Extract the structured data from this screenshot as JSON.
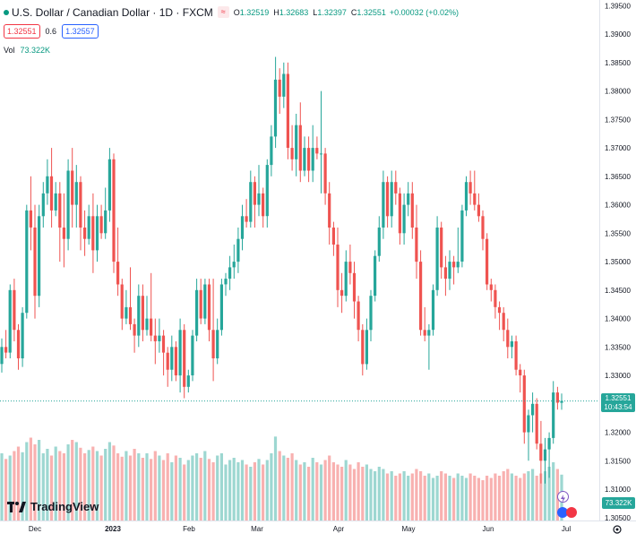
{
  "header": {
    "symbol_title": "U.S. Dollar / Canadian Dollar · 1D · FXCM",
    "open_label": "O",
    "open": "1.32519",
    "high_label": "H",
    "high": "1.32683",
    "low_label": "L",
    "low": "1.32397",
    "close_label": "C",
    "close": "1.32551",
    "change": "+0.00032 (+0.02%)",
    "bid": "1.32551",
    "spread": "0.6",
    "ask": "1.32557",
    "vol_label": "Vol",
    "vol_value": "73.322K"
  },
  "price_scale": [
    "1.39500",
    "1.39000",
    "1.38500",
    "1.38000",
    "1.37500",
    "1.37000",
    "1.36500",
    "1.36000",
    "1.35500",
    "1.35000",
    "1.34500",
    "1.34000",
    "1.33500",
    "1.33000",
    "1.32500",
    "1.32000",
    "1.31500",
    "1.31000",
    "1.30500"
  ],
  "last_price_tag": {
    "price": "1.32551",
    "countdown": "10:43:54"
  },
  "volume_tag": "73.322K",
  "time_axis": [
    "Dec",
    "2023",
    "Feb",
    "Mar",
    "Apr",
    "May",
    "Jun",
    "Jul"
  ],
  "branding": {
    "name": "TradingView"
  },
  "colors": {
    "up": "#26a69a",
    "down": "#ef5350",
    "vol_up": "#26a69a",
    "vol_down": "#ef5350"
  },
  "icons": [
    "settings-gear-icon",
    "lightning-icon",
    "flag-icon"
  ],
  "chart_data": {
    "type": "candlestick",
    "symbol": "USDCAD",
    "interval": "1D",
    "ylim": [
      1.3045,
      1.396
    ],
    "last_price": 1.32551,
    "candles": [
      [
        1.332,
        1.3365,
        1.3305,
        1.335
      ],
      [
        1.335,
        1.338,
        1.333,
        1.334
      ],
      [
        1.334,
        1.346,
        1.333,
        1.345
      ],
      [
        1.345,
        1.347,
        1.336,
        1.338
      ],
      [
        1.338,
        1.339,
        1.331,
        1.333
      ],
      [
        1.333,
        1.342,
        1.3315,
        1.341
      ],
      [
        1.341,
        1.36,
        1.34,
        1.359
      ],
      [
        1.359,
        1.365,
        1.352,
        1.356
      ],
      [
        1.356,
        1.36,
        1.34,
        1.344
      ],
      [
        1.344,
        1.36,
        1.342,
        1.358
      ],
      [
        1.358,
        1.364,
        1.356,
        1.362
      ],
      [
        1.362,
        1.368,
        1.36,
        1.365
      ],
      [
        1.365,
        1.37,
        1.356,
        1.359
      ],
      [
        1.359,
        1.364,
        1.358,
        1.362
      ],
      [
        1.362,
        1.364,
        1.35,
        1.356
      ],
      [
        1.356,
        1.362,
        1.349,
        1.354
      ],
      [
        1.354,
        1.368,
        1.352,
        1.366
      ],
      [
        1.366,
        1.37,
        1.356,
        1.36
      ],
      [
        1.36,
        1.367,
        1.356,
        1.364
      ],
      [
        1.364,
        1.365,
        1.352,
        1.356
      ],
      [
        1.356,
        1.359,
        1.351,
        1.354
      ],
      [
        1.354,
        1.36,
        1.353,
        1.358
      ],
      [
        1.358,
        1.362,
        1.348,
        1.352
      ],
      [
        1.352,
        1.36,
        1.35,
        1.358
      ],
      [
        1.358,
        1.36,
        1.354,
        1.355
      ],
      [
        1.355,
        1.363,
        1.354,
        1.359
      ],
      [
        1.359,
        1.37,
        1.357,
        1.368
      ],
      [
        1.368,
        1.369,
        1.348,
        1.35
      ],
      [
        1.35,
        1.356,
        1.344,
        1.346
      ],
      [
        1.346,
        1.347,
        1.338,
        1.34
      ],
      [
        1.34,
        1.345,
        1.339,
        1.342
      ],
      [
        1.342,
        1.349,
        1.338,
        1.339
      ],
      [
        1.339,
        1.34,
        1.334,
        1.337
      ],
      [
        1.337,
        1.346,
        1.335,
        1.344
      ],
      [
        1.344,
        1.346,
        1.336,
        1.338
      ],
      [
        1.338,
        1.344,
        1.337,
        1.34
      ],
      [
        1.34,
        1.348,
        1.336,
        1.337
      ],
      [
        1.337,
        1.34,
        1.332,
        1.336
      ],
      [
        1.336,
        1.34,
        1.334,
        1.337
      ],
      [
        1.337,
        1.338,
        1.33,
        1.334
      ],
      [
        1.334,
        1.335,
        1.328,
        1.331
      ],
      [
        1.331,
        1.337,
        1.329,
        1.335
      ],
      [
        1.335,
        1.336,
        1.329,
        1.33
      ],
      [
        1.33,
        1.34,
        1.327,
        1.338
      ],
      [
        1.338,
        1.339,
        1.326,
        1.328
      ],
      [
        1.328,
        1.331,
        1.327,
        1.33
      ],
      [
        1.33,
        1.338,
        1.329,
        1.337
      ],
      [
        1.337,
        1.347,
        1.336,
        1.345
      ],
      [
        1.345,
        1.347,
        1.339,
        1.34
      ],
      [
        1.34,
        1.347,
        1.339,
        1.346
      ],
      [
        1.346,
        1.347,
        1.336,
        1.338
      ],
      [
        1.338,
        1.347,
        1.329,
        1.333
      ],
      [
        1.333,
        1.34,
        1.332,
        1.338
      ],
      [
        1.338,
        1.347,
        1.337,
        1.346
      ],
      [
        1.346,
        1.348,
        1.344,
        1.347
      ],
      [
        1.347,
        1.351,
        1.345,
        1.349
      ],
      [
        1.349,
        1.353,
        1.347,
        1.35
      ],
      [
        1.35,
        1.356,
        1.348,
        1.354
      ],
      [
        1.354,
        1.36,
        1.352,
        1.358
      ],
      [
        1.358,
        1.361,
        1.356,
        1.357
      ],
      [
        1.357,
        1.366,
        1.356,
        1.364
      ],
      [
        1.364,
        1.365,
        1.356,
        1.36
      ],
      [
        1.36,
        1.367,
        1.358,
        1.362
      ],
      [
        1.362,
        1.363,
        1.356,
        1.358
      ],
      [
        1.358,
        1.368,
        1.356,
        1.367
      ],
      [
        1.367,
        1.374,
        1.365,
        1.372
      ],
      [
        1.372,
        1.386,
        1.37,
        1.382
      ],
      [
        1.382,
        1.384,
        1.376,
        1.379
      ],
      [
        1.379,
        1.385,
        1.377,
        1.383
      ],
      [
        1.383,
        1.385,
        1.368,
        1.37
      ],
      [
        1.37,
        1.374,
        1.366,
        1.368
      ],
      [
        1.368,
        1.376,
        1.365,
        1.374
      ],
      [
        1.374,
        1.378,
        1.364,
        1.366
      ],
      [
        1.366,
        1.372,
        1.365,
        1.37
      ],
      [
        1.37,
        1.372,
        1.364,
        1.366
      ],
      [
        1.366,
        1.374,
        1.364,
        1.37
      ],
      [
        1.37,
        1.372,
        1.368,
        1.369
      ],
      [
        1.369,
        1.38,
        1.362,
        1.369
      ],
      [
        1.369,
        1.37,
        1.36,
        1.362
      ],
      [
        1.362,
        1.364,
        1.353,
        1.356
      ],
      [
        1.356,
        1.357,
        1.351,
        1.353
      ],
      [
        1.353,
        1.356,
        1.342,
        1.345
      ],
      [
        1.345,
        1.348,
        1.341,
        1.344
      ],
      [
        1.344,
        1.352,
        1.343,
        1.35
      ],
      [
        1.35,
        1.353,
        1.346,
        1.348
      ],
      [
        1.348,
        1.35,
        1.34,
        1.343
      ],
      [
        1.343,
        1.344,
        1.336,
        1.338
      ],
      [
        1.338,
        1.339,
        1.33,
        1.332
      ],
      [
        1.332,
        1.34,
        1.331,
        1.338
      ],
      [
        1.338,
        1.345,
        1.336,
        1.344
      ],
      [
        1.344,
        1.352,
        1.343,
        1.351
      ],
      [
        1.351,
        1.358,
        1.35,
        1.356
      ],
      [
        1.356,
        1.366,
        1.354,
        1.364
      ],
      [
        1.364,
        1.365,
        1.356,
        1.358
      ],
      [
        1.358,
        1.366,
        1.356,
        1.364
      ],
      [
        1.364,
        1.366,
        1.36,
        1.362
      ],
      [
        1.362,
        1.363,
        1.353,
        1.355
      ],
      [
        1.355,
        1.362,
        1.353,
        1.36
      ],
      [
        1.36,
        1.364,
        1.358,
        1.362
      ],
      [
        1.362,
        1.364,
        1.354,
        1.356
      ],
      [
        1.356,
        1.36,
        1.347,
        1.35
      ],
      [
        1.35,
        1.352,
        1.337,
        1.338
      ],
      [
        1.338,
        1.342,
        1.336,
        1.337
      ],
      [
        1.337,
        1.339,
        1.331,
        1.338
      ],
      [
        1.338,
        1.346,
        1.337,
        1.345
      ],
      [
        1.345,
        1.358,
        1.344,
        1.356
      ],
      [
        1.356,
        1.357,
        1.347,
        1.349
      ],
      [
        1.349,
        1.351,
        1.344,
        1.347
      ],
      [
        1.347,
        1.352,
        1.345,
        1.35
      ],
      [
        1.35,
        1.351,
        1.346,
        1.349
      ],
      [
        1.349,
        1.356,
        1.348,
        1.35
      ],
      [
        1.35,
        1.36,
        1.349,
        1.359
      ],
      [
        1.359,
        1.365,
        1.358,
        1.364
      ],
      [
        1.364,
        1.366,
        1.36,
        1.362
      ],
      [
        1.362,
        1.366,
        1.359,
        1.36
      ],
      [
        1.36,
        1.362,
        1.357,
        1.358
      ],
      [
        1.358,
        1.359,
        1.352,
        1.354
      ],
      [
        1.354,
        1.355,
        1.345,
        1.346
      ],
      [
        1.346,
        1.347,
        1.343,
        1.345
      ],
      [
        1.345,
        1.346,
        1.34,
        1.342
      ],
      [
        1.342,
        1.343,
        1.338,
        1.341
      ],
      [
        1.341,
        1.342,
        1.336,
        1.338
      ],
      [
        1.338,
        1.34,
        1.333,
        1.335
      ],
      [
        1.335,
        1.337,
        1.333,
        1.336
      ],
      [
        1.336,
        1.337,
        1.33,
        1.331
      ],
      [
        1.331,
        1.332,
        1.327,
        1.33
      ],
      [
        1.33,
        1.331,
        1.318,
        1.32
      ],
      [
        1.32,
        1.324,
        1.315,
        1.323
      ],
      [
        1.323,
        1.327,
        1.32,
        1.325
      ],
      [
        1.325,
        1.326,
        1.317,
        1.318
      ],
      [
        1.318,
        1.322,
        1.311,
        1.315
      ],
      [
        1.315,
        1.319,
        1.311,
        1.317
      ],
      [
        1.317,
        1.32,
        1.312,
        1.319
      ],
      [
        1.319,
        1.329,
        1.318,
        1.327
      ],
      [
        1.327,
        1.328,
        1.324,
        1.3252
      ],
      [
        1.32519,
        1.32683,
        1.32397,
        1.32551
      ]
    ],
    "volume_max": 120,
    "volume": [
      60,
      55,
      58,
      62,
      66,
      61,
      70,
      74,
      68,
      72,
      60,
      64,
      58,
      66,
      62,
      60,
      68,
      72,
      70,
      65,
      60,
      63,
      66,
      62,
      58,
      64,
      70,
      67,
      60,
      57,
      62,
      58,
      64,
      60,
      56,
      60,
      55,
      62,
      58,
      54,
      60,
      52,
      58,
      56,
      50,
      54,
      58,
      60,
      56,
      62,
      55,
      52,
      58,
      60,
      50,
      54,
      56,
      52,
      54,
      50,
      48,
      52,
      55,
      50,
      54,
      60,
      75,
      62,
      58,
      56,
      60,
      54,
      50,
      52,
      48,
      56,
      52,
      50,
      54,
      58,
      52,
      50,
      48,
      54,
      50,
      46,
      52,
      48,
      50,
      46,
      44,
      48,
      46,
      42,
      44,
      40,
      42,
      44,
      40,
      42,
      46,
      44,
      40,
      42,
      38,
      40,
      44,
      42,
      40,
      38,
      42,
      40,
      38,
      42,
      40,
      38,
      36,
      40,
      38,
      42,
      40,
      44,
      46,
      42,
      40,
      38,
      42,
      44,
      46,
      40,
      42,
      44,
      48,
      52,
      46,
      41
    ]
  }
}
